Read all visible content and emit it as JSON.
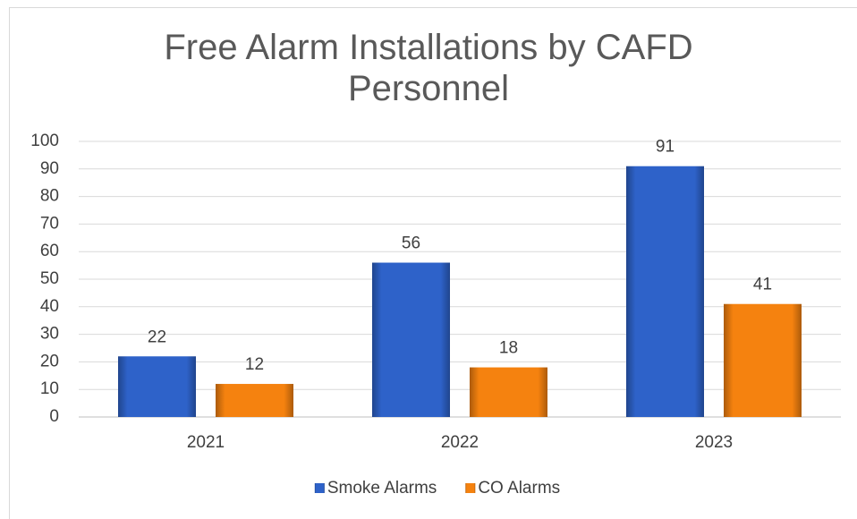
{
  "chart_data": {
    "type": "bar",
    "title": "Free Alarm Installations by CAFD Personnel",
    "categories": [
      "2021",
      "2022",
      "2023"
    ],
    "series": [
      {
        "name": "Smoke Alarms",
        "color": "#2e62c9",
        "values": [
          22,
          56,
          91
        ]
      },
      {
        "name": "CO Alarms",
        "color": "#f5820f",
        "values": [
          12,
          18,
          41
        ]
      }
    ],
    "ylim": [
      0,
      100
    ],
    "yticks": [
      0,
      10,
      20,
      30,
      40,
      50,
      60,
      70,
      80,
      90,
      100
    ],
    "grid": true,
    "legend": "bottom",
    "data_labels": true
  }
}
